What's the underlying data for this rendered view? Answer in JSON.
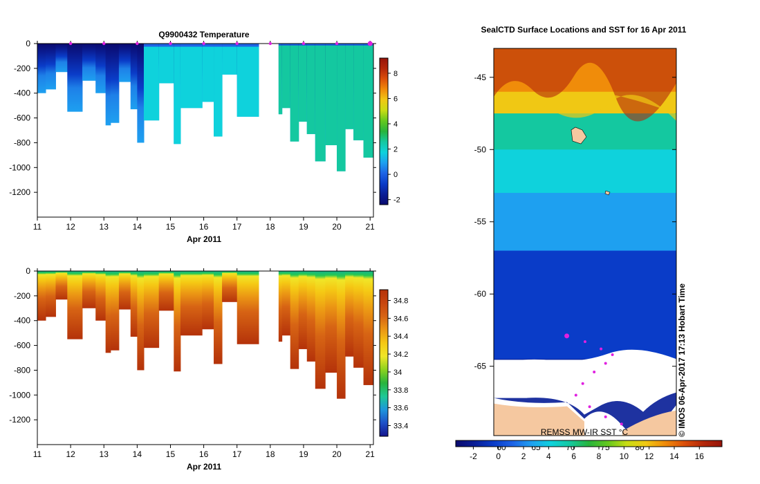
{
  "colors": {
    "temp_scale": [
      "#0a0a6e",
      "#0a1e96",
      "#0a3cc8",
      "#1e64e6",
      "#1ea0f0",
      "#0fd2dc",
      "#14c8a0",
      "#28b43c",
      "#64c81e",
      "#c8dc14",
      "#f0c814",
      "#f08c0a",
      "#dc500a",
      "#b4280a",
      "#96140a"
    ],
    "sal_scale": [
      "#14148c",
      "#1e50c8",
      "#1e96dc",
      "#1ec896",
      "#28b43c",
      "#8cd21e",
      "#f0e628",
      "#f5c814",
      "#eb9614",
      "#d76414",
      "#c8460f",
      "#b4320a"
    ]
  },
  "chart_data": [
    {
      "id": "temperature",
      "type": "heatmap",
      "title": "Q9900432  Temperature",
      "xlabel": "Apr 2011",
      "ylabel": "",
      "x_ticks": [
        "11",
        "12",
        "13",
        "14",
        "15",
        "16",
        "17",
        "18",
        "19",
        "20",
        "21"
      ],
      "y_ticks": [
        "0",
        "-200",
        "-400",
        "-600",
        "-800",
        "-1000",
        "-1200"
      ],
      "xlim": [
        11,
        21.1
      ],
      "ylim": [
        -1400,
        0
      ],
      "colorbar": {
        "range": [
          -2.4,
          9.2
        ],
        "ticks": [
          "8",
          "6",
          "4",
          "2",
          "0",
          "-2"
        ]
      },
      "profile_markers": [
        12,
        13,
        14,
        15,
        16,
        17,
        18,
        19,
        20,
        21
      ],
      "gap": [
        17.65,
        18.25
      ],
      "profiles": [
        {
          "t0": 11.0,
          "t1": 11.25,
          "depth": 400,
          "s": 0.0
        },
        {
          "t0": 11.25,
          "t1": 11.55,
          "depth": 370,
          "s": 0.0
        },
        {
          "t0": 11.55,
          "t1": 11.9,
          "depth": 230,
          "s": 0.05
        },
        {
          "t0": 11.9,
          "t1": 12.35,
          "depth": 550,
          "s": 0.05
        },
        {
          "t0": 12.35,
          "t1": 12.75,
          "depth": 300,
          "s": 0.1
        },
        {
          "t0": 12.75,
          "t1": 13.05,
          "depth": 400,
          "s": 0.15
        },
        {
          "t0": 13.05,
          "t1": 13.2,
          "depth": 660,
          "s": 0.15
        },
        {
          "t0": 13.2,
          "t1": 13.45,
          "depth": 640,
          "s": 0.2
        },
        {
          "t0": 13.45,
          "t1": 13.8,
          "depth": 310,
          "s": 0.25
        },
        {
          "t0": 13.8,
          "t1": 14.0,
          "depth": 530,
          "s": 0.3
        },
        {
          "t0": 14.0,
          "t1": 14.2,
          "depth": 800,
          "s": 0.45
        },
        {
          "t0": 14.2,
          "t1": 14.65,
          "depth": 620,
          "s": 0.95
        },
        {
          "t0": 14.65,
          "t1": 15.1,
          "depth": 320,
          "s": 0.95
        },
        {
          "t0": 15.1,
          "t1": 15.3,
          "depth": 810,
          "s": 0.95
        },
        {
          "t0": 15.3,
          "t1": 15.95,
          "depth": 520,
          "s": 0.95
        },
        {
          "t0": 15.95,
          "t1": 16.3,
          "depth": 470,
          "s": 0.95
        },
        {
          "t0": 16.3,
          "t1": 16.55,
          "depth": 750,
          "s": 0.95
        },
        {
          "t0": 16.55,
          "t1": 17.0,
          "depth": 250,
          "s": 0.95
        },
        {
          "t0": 17.0,
          "t1": 17.65,
          "depth": 590,
          "s": 0.95
        },
        {
          "t0": 18.25,
          "t1": 18.35,
          "depth": 570,
          "s": 1.0
        },
        {
          "t0": 18.35,
          "t1": 18.6,
          "depth": 520,
          "s": 1.0
        },
        {
          "t0": 18.6,
          "t1": 18.85,
          "depth": 790,
          "s": 1.0
        },
        {
          "t0": 18.85,
          "t1": 19.1,
          "depth": 630,
          "s": 1.0
        },
        {
          "t0": 19.1,
          "t1": 19.35,
          "depth": 730,
          "s": 1.0
        },
        {
          "t0": 19.35,
          "t1": 19.65,
          "depth": 950,
          "s": 1.0
        },
        {
          "t0": 19.65,
          "t1": 20.0,
          "depth": 820,
          "s": 1.0
        },
        {
          "t0": 20.0,
          "t1": 20.25,
          "depth": 1030,
          "s": 1.0
        },
        {
          "t0": 20.25,
          "t1": 20.5,
          "depth": 690,
          "s": 1.0
        },
        {
          "t0": 20.5,
          "t1": 20.8,
          "depth": 780,
          "s": 1.0
        },
        {
          "t0": 20.8,
          "t1": 21.1,
          "depth": 920,
          "s": 1.0
        }
      ]
    },
    {
      "id": "salinity",
      "type": "heatmap",
      "title": "",
      "xlabel": "Apr 2011",
      "ylabel": "",
      "x_ticks": [
        "11",
        "12",
        "13",
        "14",
        "15",
        "16",
        "17",
        "18",
        "19",
        "20",
        "21"
      ],
      "y_ticks": [
        "0",
        "-200",
        "-400",
        "-600",
        "-800",
        "-1000",
        "-1200"
      ],
      "xlim": [
        11,
        21.1
      ],
      "ylim": [
        -1400,
        0
      ],
      "colorbar": {
        "range": [
          33.28,
          34.92
        ],
        "ticks": [
          "34.8",
          "34.6",
          "34.4",
          "34.2",
          "34",
          "33.8",
          "33.6",
          "33.4"
        ]
      },
      "gap": [
        17.65,
        18.25
      ]
    },
    {
      "id": "sst-map",
      "type": "heatmap",
      "title": "SealCTD Surface Locations and SST for 16 Apr 2011",
      "y_ticks": [
        "-45",
        "-50",
        "-55",
        "-60",
        "-65"
      ],
      "ylim": [
        -69.8,
        -43
      ],
      "sst_bands": [
        {
          "lat": -43,
          "value": 14
        },
        {
          "lat": -46,
          "value": 11
        },
        {
          "lat": -47.5,
          "value": 6
        },
        {
          "lat": -50,
          "value": 3.5
        },
        {
          "lat": -53,
          "value": 2
        },
        {
          "lat": -57,
          "value": 0
        },
        {
          "lat": -61,
          "value": -1
        },
        {
          "lat": -64.5,
          "value": -1.6
        }
      ],
      "ice_edge_lat": -64.5,
      "land_lat": -67.2,
      "colorbar": {
        "range": [
          -3.4,
          17.8
        ],
        "ticks": [
          "-2",
          "0",
          "2",
          "4",
          "6",
          "8",
          "10",
          "12",
          "14",
          "16"
        ]
      },
      "lon_labels": [
        "60",
        "65",
        "70",
        "75",
        "80"
      ],
      "source_label": "REMSS MW-IR SST °C",
      "credit": "© IMOS 06-Apr-2017 17:13 Hobart Time",
      "seal_track": [
        [
          -62.9,
          -0.4
        ],
        [
          -63.3,
          0.0
        ],
        [
          -63.8,
          0.35
        ],
        [
          -64.2,
          0.6
        ],
        [
          -64.8,
          0.45
        ],
        [
          -65.4,
          0.2
        ],
        [
          -66.2,
          -0.05
        ],
        [
          -67.0,
          -0.2
        ],
        [
          -67.8,
          0.1
        ],
        [
          -68.5,
          0.45
        ],
        [
          -69.0,
          0.8
        ]
      ]
    }
  ]
}
